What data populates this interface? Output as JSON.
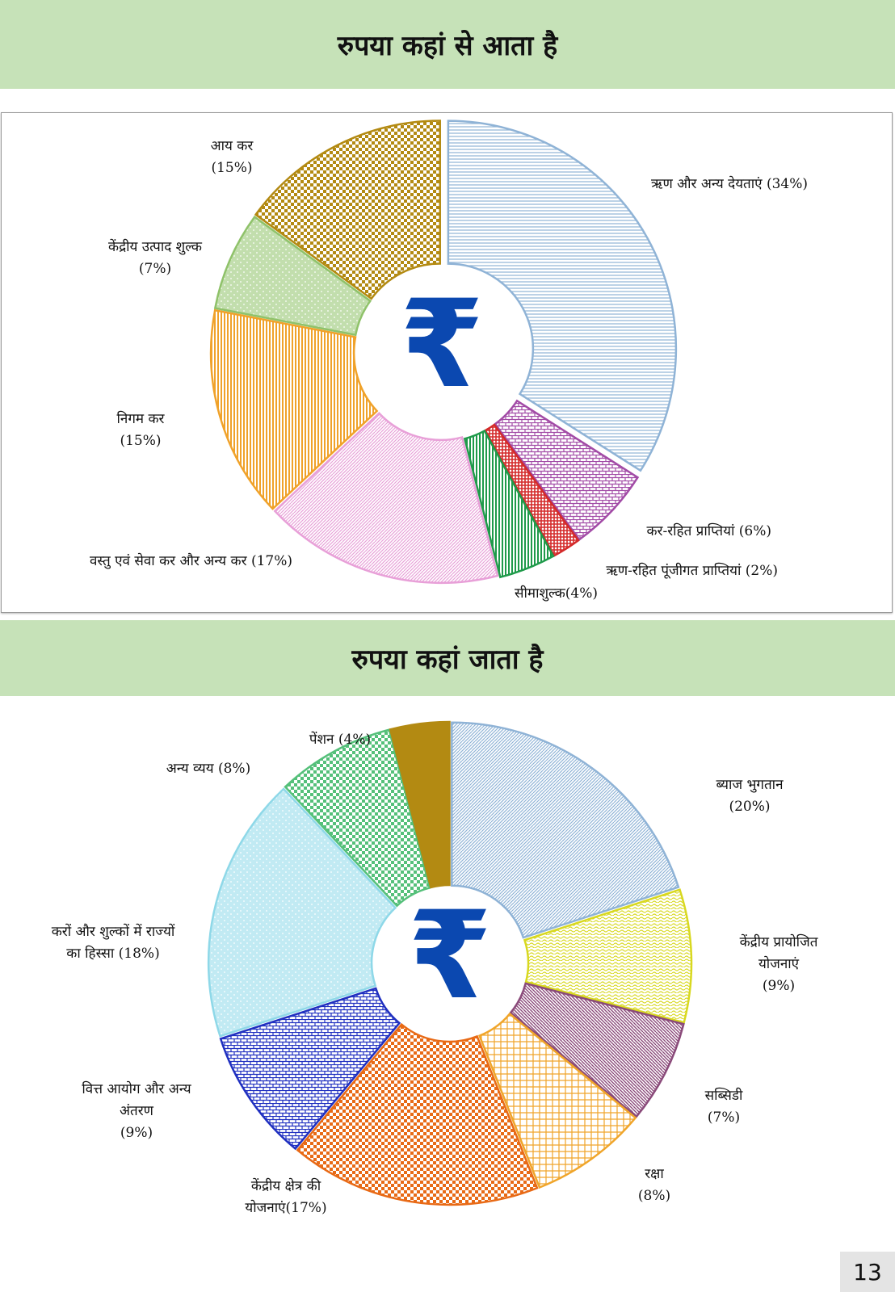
{
  "page_number": "13",
  "colors": {
    "banner": "#c6e2b8",
    "rupee": "#0b48b0"
  },
  "rupee_symbol": "₹",
  "chart_data": [
    {
      "type": "pie",
      "title": "रुपया कहां से आता है",
      "donut": true,
      "categories": [
        "ऋण और अन्य देयताएं (34%)",
        "कर-रहित प्राप्तियां (6%)",
        "ऋण-रहित पूंजीगत प्राप्तियां (2%)",
        "सीमाशुल्क(4%)",
        "वस्तु एवं सेवा कर और अन्य कर (17%)",
        "निगम कर (15%)",
        "केंद्रीय उत्पाद शुल्क (7%)",
        "आय कर (15%)"
      ],
      "values": [
        34,
        6,
        2,
        4,
        17,
        15,
        7,
        15
      ],
      "colors": [
        "#8fb3d6",
        "#a24ba6",
        "#d42a2a",
        "#1f9a4a",
        "#e8a0d8",
        "#f0a22a",
        "#8fc26a",
        "#b38a12"
      ],
      "labels": [
        {
          "lines": [
            "ऋण और अन्य देयताएं (34%)"
          ]
        },
        {
          "lines": [
            "कर-रहित प्राप्तियां (6%)"
          ]
        },
        {
          "lines": [
            "ऋण-रहित पूंजीगत प्राप्तियां (2%)"
          ]
        },
        {
          "lines": [
            "सीमाशुल्क(4%)"
          ]
        },
        {
          "lines": [
            "वस्तु एवं सेवा कर और अन्य कर (17%)"
          ]
        },
        {
          "lines": [
            "निगम कर",
            "(15%)"
          ]
        },
        {
          "lines": [
            "केंद्रीय उत्पाद शुल्क",
            "(7%)"
          ]
        },
        {
          "lines": [
            "आय कर",
            "(15%)"
          ]
        }
      ]
    },
    {
      "type": "pie",
      "title": "रुपया कहां जाता है",
      "donut": true,
      "categories": [
        "ब्याज भुगतान (20%)",
        "केंद्रीय प्रायोजित योजनाएं (9%)",
        "सब्सिडी (7%)",
        "रक्षा (8%)",
        "केंद्रीय क्षेत्र की योजनाएं(17%)",
        "वित्त आयोग और अन्य अंतरण (9%)",
        "करों और शुल्कों में राज्यों का हिस्सा (18%)",
        "अन्य व्यय (8%)",
        "पेंशन (4%)"
      ],
      "values": [
        20,
        9,
        7,
        8,
        17,
        9,
        18,
        8,
        4
      ],
      "colors": [
        "#8fb3d6",
        "#d8d820",
        "#8a4a7a",
        "#f0a52a",
        "#e86a16",
        "#1f2fc0",
        "#8ed8e8",
        "#55c07a",
        "#b38a12"
      ],
      "labels": [
        {
          "lines": [
            "ब्याज भुगतान",
            "(20%)"
          ]
        },
        {
          "lines": [
            "केंद्रीय प्रायोजित",
            "योजनाएं",
            "(9%)"
          ]
        },
        {
          "lines": [
            "सब्सिडी",
            "(7%)"
          ]
        },
        {
          "lines": [
            "रक्षा",
            "(8%)"
          ]
        },
        {
          "lines": [
            "केंद्रीय क्षेत्र की",
            "योजनाएं(17%)"
          ]
        },
        {
          "lines": [
            "वित्त आयोग और अन्य",
            "अंतरण",
            "(9%)"
          ]
        },
        {
          "lines": [
            "करों और शुल्कों में राज्यों",
            "का हिस्सा (18%)"
          ]
        },
        {
          "lines": [
            "अन्य व्यय (8%)"
          ]
        },
        {
          "lines": [
            "पेंशन (4%)"
          ]
        }
      ]
    }
  ]
}
